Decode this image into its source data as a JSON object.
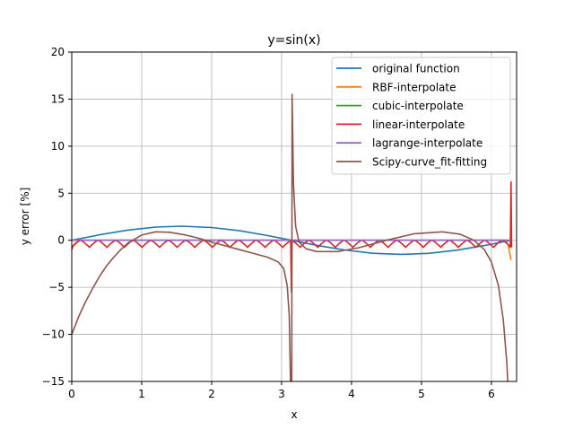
{
  "chart_data": {
    "type": "line",
    "title": "y=sin(x)",
    "xlabel": "x",
    "ylabel": "y error [%]",
    "xlim": [
      0,
      6.36
    ],
    "ylim": [
      -15,
      20
    ],
    "xticks": [
      0,
      1,
      2,
      3,
      4,
      5,
      6
    ],
    "yticks": [
      -15,
      -10,
      -5,
      0,
      5,
      10,
      15,
      20
    ],
    "grid": true,
    "legend_position": "top-right",
    "series": [
      {
        "name": "original function",
        "color": "#1f77b4",
        "points": [
          [
            0,
            0
          ],
          [
            0.4,
            0.58
          ],
          [
            0.8,
            1.08
          ],
          [
            1.2,
            1.4
          ],
          [
            1.57,
            1.5
          ],
          [
            2.0,
            1.36
          ],
          [
            2.4,
            1.01
          ],
          [
            2.8,
            0.5
          ],
          [
            3.14,
            0
          ],
          [
            3.5,
            -0.53
          ],
          [
            3.9,
            -1.03
          ],
          [
            4.3,
            -1.38
          ],
          [
            4.71,
            -1.5
          ],
          [
            5.1,
            -1.39
          ],
          [
            5.5,
            -1.06
          ],
          [
            5.9,
            -0.56
          ],
          [
            6.28,
            0
          ]
        ]
      },
      {
        "name": "RBF-interpolate",
        "color": "#ff7f0e",
        "points": [
          [
            0,
            -0.8
          ],
          [
            0.05,
            -0.3
          ],
          [
            0.12,
            0
          ],
          [
            6.2,
            0
          ],
          [
            6.24,
            -0.5
          ],
          [
            6.28,
            -2.1
          ]
        ]
      },
      {
        "name": "cubic-interpolate",
        "color": "#2ca02c",
        "points": [
          [
            0,
            0
          ],
          [
            6.28,
            0
          ]
        ]
      },
      {
        "name": "linear-interpolate",
        "color": "#d62728",
        "scallop": {
          "start": 0,
          "end": 6.28,
          "intervals": 25,
          "depth": -0.75
        },
        "overrides": [
          [
            0,
            -1.0
          ],
          [
            3.14,
            -5.5
          ],
          [
            6.28,
            6.2
          ]
        ]
      },
      {
        "name": "lagrange-interpolate",
        "color": "#9467bd",
        "points": [
          [
            0,
            0
          ],
          [
            6.28,
            0
          ]
        ]
      },
      {
        "name": "Scipy-curve_fit-fitting",
        "color": "#8c564b",
        "points": [
          [
            0,
            -10
          ],
          [
            0.1,
            -8.1
          ],
          [
            0.2,
            -6.5
          ],
          [
            0.3,
            -5.1
          ],
          [
            0.4,
            -3.8
          ],
          [
            0.5,
            -2.7
          ],
          [
            0.6,
            -1.8
          ],
          [
            0.7,
            -1.0
          ],
          [
            0.8,
            -0.3
          ],
          [
            1.0,
            0.55
          ],
          [
            1.2,
            0.9
          ],
          [
            1.4,
            0.85
          ],
          [
            1.6,
            0.6
          ],
          [
            1.8,
            0.25
          ],
          [
            2.0,
            -0.2
          ],
          [
            2.2,
            -0.6
          ],
          [
            2.4,
            -1.0
          ],
          [
            2.6,
            -1.4
          ],
          [
            2.8,
            -1.8
          ],
          [
            2.95,
            -2.3
          ],
          [
            3.03,
            -3.0
          ],
          [
            3.08,
            -4.8
          ],
          [
            3.11,
            -8
          ],
          [
            3.13,
            -16
          ],
          [
            3.145,
            -16
          ],
          [
            3.15,
            15.5
          ],
          [
            3.17,
            6
          ],
          [
            3.2,
            1.5
          ],
          [
            3.25,
            -0.2
          ],
          [
            3.35,
            -0.9
          ],
          [
            3.5,
            -1.2
          ],
          [
            3.8,
            -1.2
          ],
          [
            4.1,
            -0.8
          ],
          [
            4.5,
            0
          ],
          [
            4.9,
            0.7
          ],
          [
            5.3,
            0.9
          ],
          [
            5.55,
            0.65
          ],
          [
            5.75,
            0
          ],
          [
            5.9,
            -1.0
          ],
          [
            6.0,
            -2.3
          ],
          [
            6.1,
            -4.8
          ],
          [
            6.17,
            -8.5
          ],
          [
            6.22,
            -13
          ],
          [
            6.24,
            -16
          ]
        ]
      }
    ]
  }
}
